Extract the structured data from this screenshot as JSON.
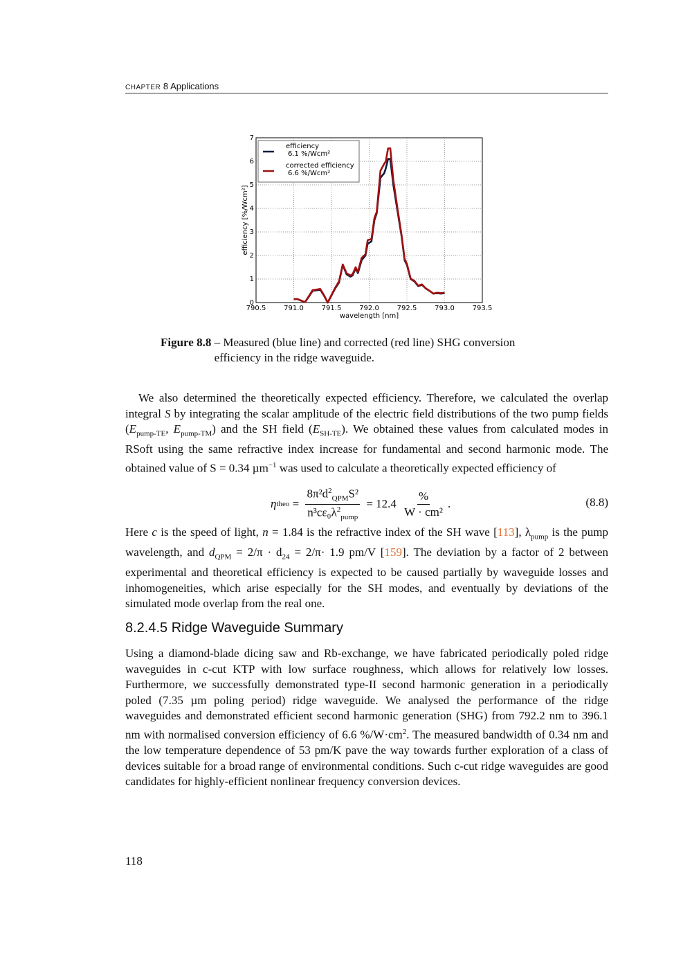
{
  "header": {
    "chapter_word": "Chapter",
    "chapter_num": "8",
    "chapter_title": "Applications"
  },
  "figure": {
    "label": "Figure 8.8",
    "caption": "– Measured (blue line) and corrected (red line) SHG conversion efficiency in the ridge waveguide."
  },
  "chart_data": {
    "type": "line",
    "xlabel": "wavelength [nm]",
    "ylabel": "efficiency [%/Wcm²]",
    "xlim": [
      790.5,
      793.5
    ],
    "ylim": [
      0,
      7
    ],
    "xticks": [
      "790.5",
      "791.0",
      "791.5",
      "792.0",
      "792.5",
      "793.0",
      "793.5"
    ],
    "yticks": [
      "0",
      "1",
      "2",
      "3",
      "4",
      "5",
      "6",
      "7"
    ],
    "grid": true,
    "legend_position": "top-left",
    "series": [
      {
        "name": "efficiency",
        "sublabel": "6.1 %/Wcm²",
        "color": "#0d1b3e",
        "x": [
          791.0,
          791.05,
          791.1,
          791.15,
          791.2,
          791.25,
          791.3,
          791.35,
          791.4,
          791.45,
          791.5,
          791.55,
          791.6,
          791.65,
          791.7,
          791.75,
          791.78,
          791.82,
          791.85,
          791.9,
          791.95,
          791.98,
          792.03,
          792.07,
          792.1,
          792.15,
          792.2,
          792.22,
          792.25,
          792.28,
          792.32,
          792.38,
          792.43,
          792.47,
          792.5,
          792.55,
          792.6,
          792.65,
          792.7,
          792.75,
          792.8,
          792.85,
          792.9,
          792.95,
          793.0
        ],
        "y": [
          0.15,
          0.15,
          0.08,
          0.02,
          0.25,
          0.5,
          0.52,
          0.55,
          0.3,
          0.0,
          0.3,
          0.6,
          0.85,
          1.6,
          1.2,
          1.1,
          1.15,
          1.45,
          1.25,
          1.8,
          2.0,
          2.5,
          2.6,
          3.5,
          3.8,
          5.3,
          5.5,
          5.7,
          6.1,
          6.1,
          5.0,
          3.8,
          2.8,
          1.8,
          1.6,
          1.0,
          0.9,
          0.7,
          0.75,
          0.6,
          0.5,
          0.38,
          0.4,
          0.38,
          0.4
        ]
      },
      {
        "name": "corrected efficiency",
        "sublabel": "6.6 %/Wcm²",
        "color": "#a01010",
        "x": [
          791.0,
          791.05,
          791.1,
          791.15,
          791.2,
          791.25,
          791.3,
          791.35,
          791.4,
          791.45,
          791.5,
          791.55,
          791.6,
          791.65,
          791.7,
          791.75,
          791.78,
          791.82,
          791.85,
          791.9,
          791.95,
          791.98,
          792.03,
          792.07,
          792.1,
          792.15,
          792.2,
          792.22,
          792.25,
          792.28,
          792.32,
          792.38,
          792.43,
          792.47,
          792.5,
          792.55,
          792.6,
          792.65,
          792.7,
          792.75,
          792.8,
          792.85,
          792.9,
          792.95,
          793.0
        ],
        "y": [
          0.15,
          0.15,
          0.08,
          0.02,
          0.27,
          0.53,
          0.55,
          0.58,
          0.32,
          0.0,
          0.32,
          0.63,
          0.9,
          1.62,
          1.25,
          1.15,
          1.2,
          1.5,
          1.3,
          1.9,
          2.05,
          2.65,
          2.7,
          3.6,
          3.85,
          5.6,
          5.9,
          6.0,
          6.55,
          6.55,
          5.2,
          3.9,
          2.85,
          1.85,
          1.65,
          1.02,
          0.92,
          0.72,
          0.77,
          0.6,
          0.5,
          0.38,
          0.42,
          0.4,
          0.42
        ]
      }
    ]
  },
  "para1": {
    "a": "We also determined the theoretically expected efficiency. Therefore, we calculated the overlap integral ",
    "S": "S",
    "b": " by integrating the scalar amplitude of the electric field distributions of the two pump fields (",
    "E": "E",
    "sub1": "pump-TE",
    "c": ", ",
    "sub2": "pump-TM",
    "d": ") and the SH field (",
    "sub3": "SH-TE",
    "e": "). We obtained these values from calculated modes in RSoft using the same refractive index increase for fundamental and second harmonic mode. The obtained value of ",
    "val": "S = 0.34 µm",
    "valsup": "−1",
    "f": " was used to calculate a theoretically expected efficiency of"
  },
  "equation": {
    "lhs": "η",
    "lhs_sub": "theo",
    "eq": " = ",
    "num": "8π²d",
    "num_sup": "2",
    "num_sub": "QPM",
    "num_end": "S²",
    "den": "n³cε₀λ",
    "den_sup": "2",
    "den_sub": "pump",
    "eq2": " = 12.4 ",
    "unit_num": "%",
    "unit_den": "W · cm²",
    "dot": ".",
    "number": "(8.8)"
  },
  "para2": {
    "a": "Here ",
    "c": "c",
    "b": " is the speed of light, ",
    "n": "n",
    "c2": " = 1.84 is the refractive index of the SH wave [",
    "ref1": "113",
    "d": "], λ",
    "d_sub": "pump",
    "e": " is the pump wavelength, and ",
    "dq": "d",
    "dq_sub": "QPM",
    "f": " = 2/π · d",
    "f_sub": "24",
    "g": " = 2/π· 1.9 pm/V [",
    "ref2": "159",
    "h": "]. The deviation by a factor of 2 between experimental and theoretical efficiency is expected to be caused partially by waveguide losses and inhomogeneities, which arise especially for the SH modes, and eventually by deviations of the simulated mode overlap from the real one."
  },
  "section": {
    "title": "8.2.4.5 Ridge Waveguide Summary"
  },
  "para3": {
    "a": "Using a diamond-blade dicing saw and Rb-exchange, we have fabricated periodically poled ridge waveguides in c-cut KTP with low surface roughness, which allows for relatively low losses. Furthermore, we successfully demonstrated type-II second harmonic generation in a periodically poled (7.35 µm poling period) ridge waveguide. We analysed the performance of the ridge waveguides and demonstrated efficient second harmonic generation (SHG) from 792.2 nm to 396.1 nm with normalised conversion efficiency of 6.6 %/W·cm",
    "sup": "2",
    "b": ". The measured bandwidth of 0.34 nm and the low temperature dependence of 53 pm/K pave the way towards further exploration of a class of devices suitable for a broad range of environmental conditions. Such c-cut ridge waveguides are good candidates for highly-efficient nonlinear frequency conversion devices."
  },
  "page_number": "118"
}
